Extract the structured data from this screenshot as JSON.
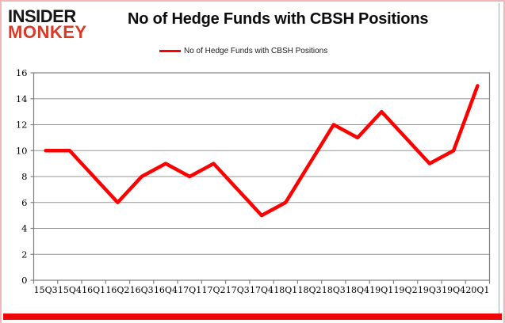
{
  "brand": {
    "line1": "INSIDER",
    "line2": "MONKEY",
    "line2_color": "#d93a28"
  },
  "header": {
    "title": "No of Hedge Funds with CBSH Positions"
  },
  "legend": {
    "label": "No of Hedge Funds with CBSH Positions",
    "swatch_color": "#ff0000",
    "position": "top"
  },
  "chart_data": {
    "type": "line",
    "title": "No of Hedge Funds with CBSH Positions",
    "categories": [
      "15Q3",
      "15Q4",
      "16Q1",
      "16Q2",
      "16Q3",
      "16Q4",
      "17Q1",
      "17Q2",
      "17Q3",
      "17Q4",
      "18Q1",
      "18Q2",
      "18Q3",
      "18Q4",
      "19Q1",
      "19Q2",
      "19Q3",
      "19Q4",
      "20Q1"
    ],
    "series": [
      {
        "name": "No of Hedge Funds with CBSH Positions",
        "color": "#ff0000",
        "values": [
          10,
          10,
          8,
          6,
          8,
          9,
          8,
          9,
          7,
          5,
          6,
          9,
          12,
          11,
          13,
          11,
          9,
          10,
          15
        ]
      }
    ],
    "xlabel": "",
    "ylabel": "",
    "ylim": [
      0,
      16
    ],
    "ytick_step": 2,
    "grid": true,
    "legend_position": "top",
    "gridline_color": "#969696",
    "axis_color": "#7f7f7f",
    "tick_label_color": "#000000"
  },
  "footer": {
    "bar_color": "#ee0505"
  }
}
